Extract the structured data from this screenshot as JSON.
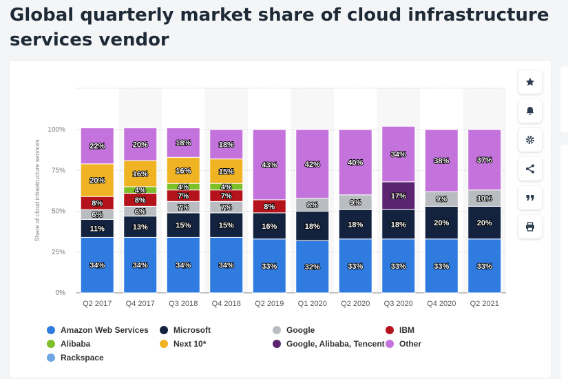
{
  "title": "Global quarterly market share of cloud infrastructure services vendor",
  "toolbar": [
    {
      "name": "favorite-button",
      "icon": "star-icon"
    },
    {
      "name": "alert-button",
      "icon": "bell-icon"
    },
    {
      "name": "settings-button",
      "icon": "gear-icon"
    },
    {
      "name": "share-button",
      "icon": "share-icon"
    },
    {
      "name": "cite-button",
      "icon": "quote-icon"
    },
    {
      "name": "print-button",
      "icon": "printer-icon"
    }
  ],
  "colors": {
    "Amazon Web Services": "#2f7be0",
    "Microsoft": "#13233f",
    "Google": "#b9bcc0",
    "IBM": "#b5131b",
    "Alibaba": "#7ec02a",
    "Next 10*": "#f0b323",
    "Google, Alibaba, Tencent": "#5b2470",
    "Other": "#c472dc",
    "Rackspace": "#6fa6e6"
  },
  "chart_data": {
    "type": "bar",
    "stacked": true,
    "ylabel": "Share of cloud infrastructure services",
    "ylim": [
      0,
      100
    ],
    "yticks": [
      "0%",
      "25%",
      "50%",
      "75%",
      "100%"
    ],
    "grid": true,
    "legend_position": "bottom",
    "categories": [
      "Q2 2017",
      "Q4 2017",
      "Q3 2018",
      "Q4 2018",
      "Q2 2019",
      "Q1 2020",
      "Q2 2020",
      "Q3 2020",
      "Q4 2020",
      "Q2 2021"
    ],
    "series": [
      {
        "name": "Amazon Web Services",
        "values": [
          34,
          34,
          34,
          34,
          33,
          32,
          33,
          33,
          33,
          33
        ]
      },
      {
        "name": "Microsoft",
        "values": [
          11,
          13,
          15,
          15,
          16,
          18,
          18,
          18,
          20,
          20
        ]
      },
      {
        "name": "Google",
        "values": [
          6,
          6,
          7,
          7,
          null,
          8,
          9,
          null,
          9,
          10
        ]
      },
      {
        "name": "IBM",
        "values": [
          8,
          8,
          7,
          7,
          8,
          null,
          null,
          null,
          null,
          null
        ]
      },
      {
        "name": "Alibaba",
        "values": [
          null,
          4,
          4,
          4,
          null,
          null,
          null,
          null,
          null,
          null
        ]
      },
      {
        "name": "Next 10*",
        "values": [
          20,
          16,
          16,
          15,
          null,
          null,
          null,
          null,
          null,
          null
        ]
      },
      {
        "name": "Google, Alibaba, Tencent",
        "values": [
          null,
          null,
          null,
          null,
          null,
          null,
          null,
          17,
          null,
          null
        ]
      },
      {
        "name": "Other",
        "values": [
          22,
          20,
          18,
          18,
          43,
          42,
          40,
          34,
          38,
          37
        ]
      },
      {
        "name": "Rackspace",
        "values": [
          null,
          null,
          null,
          null,
          null,
          null,
          null,
          null,
          null,
          null
        ]
      }
    ],
    "legend": [
      "Amazon Web Services",
      "Microsoft",
      "Google",
      "IBM",
      "Alibaba",
      "Next 10*",
      "Google, Alibaba, Tencent",
      "Other",
      "Rackspace"
    ]
  }
}
